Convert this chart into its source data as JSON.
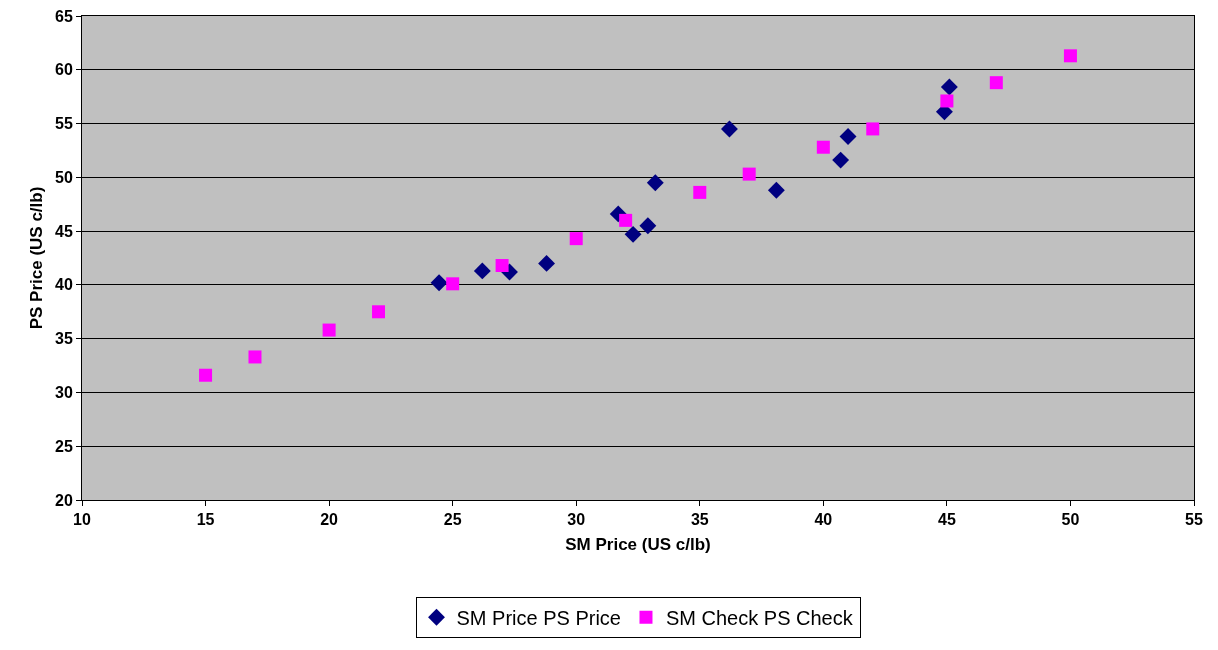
{
  "chart_data": {
    "type": "scatter",
    "xlabel": "SM Price (US c/lb)",
    "ylabel": "PS Price (US c/lb)",
    "xlim": [
      10,
      55
    ],
    "xticks": [
      10,
      15,
      20,
      25,
      30,
      35,
      40,
      45,
      50,
      55
    ],
    "ylim": [
      20,
      65
    ],
    "yticks": [
      20,
      25,
      30,
      35,
      40,
      45,
      50,
      55,
      60,
      65
    ],
    "grid": "y",
    "legend": "bottom",
    "series": [
      {
        "name": "SM Price PS Price",
        "color": "#000080",
        "marker": "diamond",
        "x": [
          24.45,
          26.2,
          27.3,
          28.8,
          31.7,
          32.3,
          32.9,
          33.2,
          36.2,
          38.1,
          40.7,
          41.0,
          44.9,
          45.1
        ],
        "values": [
          40.2,
          41.3,
          41.2,
          42.0,
          46.6,
          44.7,
          45.5,
          49.5,
          54.5,
          48.8,
          51.6,
          53.8,
          56.1,
          58.4
        ]
      },
      {
        "name": "SM Check PS Check",
        "color": "#ff00ff",
        "marker": "square",
        "x": [
          15,
          17,
          20,
          22,
          25,
          27,
          30,
          32,
          35,
          37,
          40,
          42,
          45,
          47,
          50
        ],
        "values": [
          31.6,
          33.3,
          35.8,
          37.5,
          40.1,
          41.8,
          44.3,
          46.0,
          48.6,
          50.3,
          52.8,
          54.5,
          57.1,
          58.8,
          61.3
        ]
      }
    ]
  }
}
